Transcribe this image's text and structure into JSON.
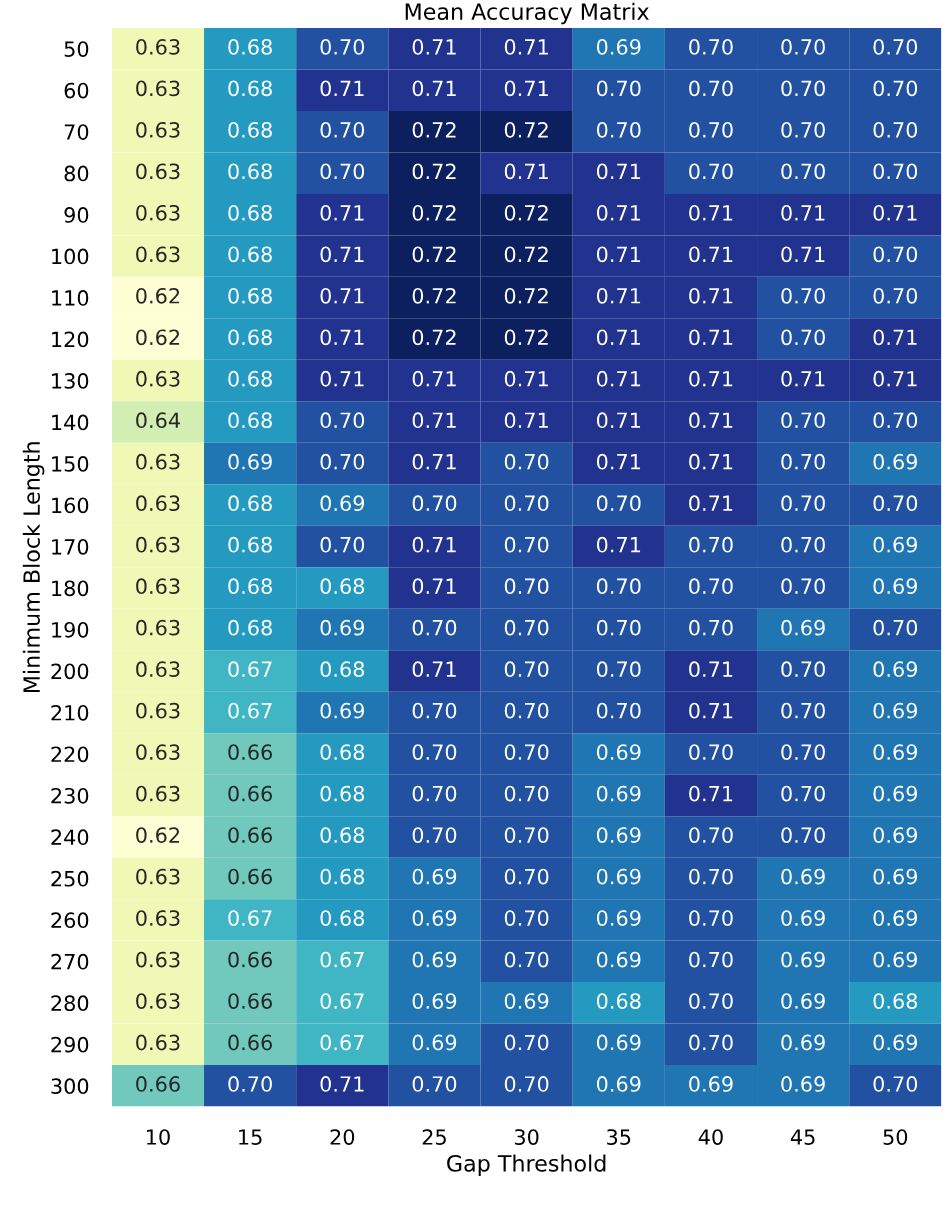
{
  "chart_data": {
    "type": "heatmap",
    "title": "Mean Accuracy Matrix",
    "xlabel": "Gap Threshold",
    "ylabel": "Minimum Block Length",
    "categories": [
      "10",
      "15",
      "20",
      "25",
      "30",
      "35",
      "40",
      "45",
      "50"
    ],
    "y_categories": [
      "50",
      "60",
      "70",
      "80",
      "90",
      "100",
      "110",
      "120",
      "130",
      "140",
      "150",
      "160",
      "170",
      "180",
      "190",
      "200",
      "210",
      "220",
      "230",
      "240",
      "250",
      "260",
      "270",
      "280",
      "290",
      "300"
    ],
    "cells": [
      [
        0.63,
        0.68,
        0.7,
        0.71,
        0.71,
        0.69,
        0.7,
        0.7,
        0.7
      ],
      [
        0.63,
        0.68,
        0.71,
        0.71,
        0.71,
        0.7,
        0.7,
        0.7,
        0.7
      ],
      [
        0.63,
        0.68,
        0.7,
        0.72,
        0.72,
        0.7,
        0.7,
        0.7,
        0.7
      ],
      [
        0.63,
        0.68,
        0.7,
        0.72,
        0.71,
        0.71,
        0.7,
        0.7,
        0.7
      ],
      [
        0.63,
        0.68,
        0.71,
        0.72,
        0.72,
        0.71,
        0.71,
        0.71,
        0.71
      ],
      [
        0.63,
        0.68,
        0.71,
        0.72,
        0.72,
        0.71,
        0.71,
        0.71,
        0.7
      ],
      [
        0.62,
        0.68,
        0.71,
        0.72,
        0.72,
        0.71,
        0.71,
        0.7,
        0.7
      ],
      [
        0.62,
        0.68,
        0.71,
        0.72,
        0.72,
        0.71,
        0.71,
        0.7,
        0.71
      ],
      [
        0.63,
        0.68,
        0.71,
        0.71,
        0.71,
        0.71,
        0.71,
        0.71,
        0.71
      ],
      [
        0.64,
        0.68,
        0.7,
        0.71,
        0.71,
        0.71,
        0.71,
        0.7,
        0.7
      ],
      [
        0.63,
        0.69,
        0.7,
        0.71,
        0.7,
        0.71,
        0.71,
        0.7,
        0.69
      ],
      [
        0.63,
        0.68,
        0.69,
        0.7,
        0.7,
        0.7,
        0.71,
        0.7,
        0.7
      ],
      [
        0.63,
        0.68,
        0.7,
        0.71,
        0.7,
        0.71,
        0.7,
        0.7,
        0.69
      ],
      [
        0.63,
        0.68,
        0.68,
        0.71,
        0.7,
        0.7,
        0.7,
        0.7,
        0.69
      ],
      [
        0.63,
        0.68,
        0.69,
        0.7,
        0.7,
        0.7,
        0.7,
        0.69,
        0.7
      ],
      [
        0.63,
        0.67,
        0.68,
        0.71,
        0.7,
        0.7,
        0.71,
        0.7,
        0.69
      ],
      [
        0.63,
        0.67,
        0.69,
        0.7,
        0.7,
        0.7,
        0.71,
        0.7,
        0.69
      ],
      [
        0.63,
        0.66,
        0.68,
        0.7,
        0.7,
        0.69,
        0.7,
        0.7,
        0.69
      ],
      [
        0.63,
        0.66,
        0.68,
        0.7,
        0.7,
        0.69,
        0.71,
        0.7,
        0.69
      ],
      [
        0.62,
        0.66,
        0.68,
        0.7,
        0.7,
        0.69,
        0.7,
        0.7,
        0.69
      ],
      [
        0.63,
        0.66,
        0.68,
        0.69,
        0.7,
        0.69,
        0.7,
        0.69,
        0.69
      ],
      [
        0.63,
        0.67,
        0.68,
        0.69,
        0.7,
        0.69,
        0.7,
        0.69,
        0.69
      ],
      [
        0.63,
        0.66,
        0.67,
        0.69,
        0.7,
        0.69,
        0.7,
        0.69,
        0.69
      ],
      [
        0.63,
        0.66,
        0.67,
        0.69,
        0.69,
        0.68,
        0.7,
        0.69,
        0.68
      ],
      [
        0.63,
        0.66,
        0.67,
        0.69,
        0.7,
        0.69,
        0.7,
        0.69,
        0.69
      ],
      [
        0.66,
        0.7,
        0.71,
        0.7,
        0.7,
        0.69,
        0.69,
        0.69,
        0.7
      ]
    ],
    "cell_labels": [
      [
        "0.63",
        "0.68",
        "0.70",
        "0.71",
        "0.71",
        "0.69",
        "0.70",
        "0.70",
        "0.70"
      ],
      [
        "0.63",
        "0.68",
        "0.71",
        "0.71",
        "0.71",
        "0.70",
        "0.70",
        "0.70",
        "0.70"
      ],
      [
        "0.63",
        "0.68",
        "0.70",
        "0.72",
        "0.72",
        "0.70",
        "0.70",
        "0.70",
        "0.70"
      ],
      [
        "0.63",
        "0.68",
        "0.70",
        "0.72",
        "0.71",
        "0.71",
        "0.70",
        "0.70",
        "0.70"
      ],
      [
        "0.63",
        "0.68",
        "0.71",
        "0.72",
        "0.72",
        "0.71",
        "0.71",
        "0.71",
        "0.71"
      ],
      [
        "0.63",
        "0.68",
        "0.71",
        "0.72",
        "0.72",
        "0.71",
        "0.71",
        "0.71",
        "0.70"
      ],
      [
        "0.62",
        "0.68",
        "0.71",
        "0.72",
        "0.72",
        "0.71",
        "0.71",
        "0.70",
        "0.70"
      ],
      [
        "0.62",
        "0.68",
        "0.71",
        "0.72",
        "0.72",
        "0.71",
        "0.71",
        "0.70",
        "0.71"
      ],
      [
        "0.63",
        "0.68",
        "0.71",
        "0.71",
        "0.71",
        "0.71",
        "0.71",
        "0.71",
        "0.71"
      ],
      [
        "0.64",
        "0.68",
        "0.70",
        "0.71",
        "0.71",
        "0.71",
        "0.71",
        "0.70",
        "0.70"
      ],
      [
        "0.63",
        "0.69",
        "0.70",
        "0.71",
        "0.70",
        "0.71",
        "0.71",
        "0.70",
        "0.69"
      ],
      [
        "0.63",
        "0.68",
        "0.69",
        "0.70",
        "0.70",
        "0.70",
        "0.71",
        "0.70",
        "0.70"
      ],
      [
        "0.63",
        "0.68",
        "0.70",
        "0.71",
        "0.70",
        "0.71",
        "0.70",
        "0.70",
        "0.69"
      ],
      [
        "0.63",
        "0.68",
        "0.68",
        "0.71",
        "0.70",
        "0.70",
        "0.70",
        "0.70",
        "0.69"
      ],
      [
        "0.63",
        "0.68",
        "0.69",
        "0.70",
        "0.70",
        "0.70",
        "0.70",
        "0.69",
        "0.70"
      ],
      [
        "0.63",
        "0.67",
        "0.68",
        "0.71",
        "0.70",
        "0.70",
        "0.71",
        "0.70",
        "0.69"
      ],
      [
        "0.63",
        "0.67",
        "0.69",
        "0.70",
        "0.70",
        "0.70",
        "0.71",
        "0.70",
        "0.69"
      ],
      [
        "0.63",
        "0.66",
        "0.68",
        "0.70",
        "0.70",
        "0.69",
        "0.70",
        "0.70",
        "0.69"
      ],
      [
        "0.63",
        "0.66",
        "0.68",
        "0.70",
        "0.70",
        "0.69",
        "0.71",
        "0.70",
        "0.69"
      ],
      [
        "0.62",
        "0.66",
        "0.68",
        "0.70",
        "0.70",
        "0.69",
        "0.70",
        "0.70",
        "0.69"
      ],
      [
        "0.63",
        "0.66",
        "0.68",
        "0.69",
        "0.70",
        "0.69",
        "0.70",
        "0.69",
        "0.69"
      ],
      [
        "0.63",
        "0.67",
        "0.68",
        "0.69",
        "0.70",
        "0.69",
        "0.70",
        "0.69",
        "0.69"
      ],
      [
        "0.63",
        "0.66",
        "0.67",
        "0.69",
        "0.70",
        "0.69",
        "0.70",
        "0.69",
        "0.69"
      ],
      [
        "0.63",
        "0.66",
        "0.67",
        "0.69",
        "0.69",
        "0.68",
        "0.70",
        "0.69",
        "0.68"
      ],
      [
        "0.63",
        "0.66",
        "0.67",
        "0.69",
        "0.70",
        "0.69",
        "0.70",
        "0.69",
        "0.69"
      ],
      [
        "0.66",
        "0.70",
        "0.71",
        "0.70",
        "0.70",
        "0.69",
        "0.69",
        "0.69",
        "0.70"
      ]
    ],
    "data_labels": true
  }
}
